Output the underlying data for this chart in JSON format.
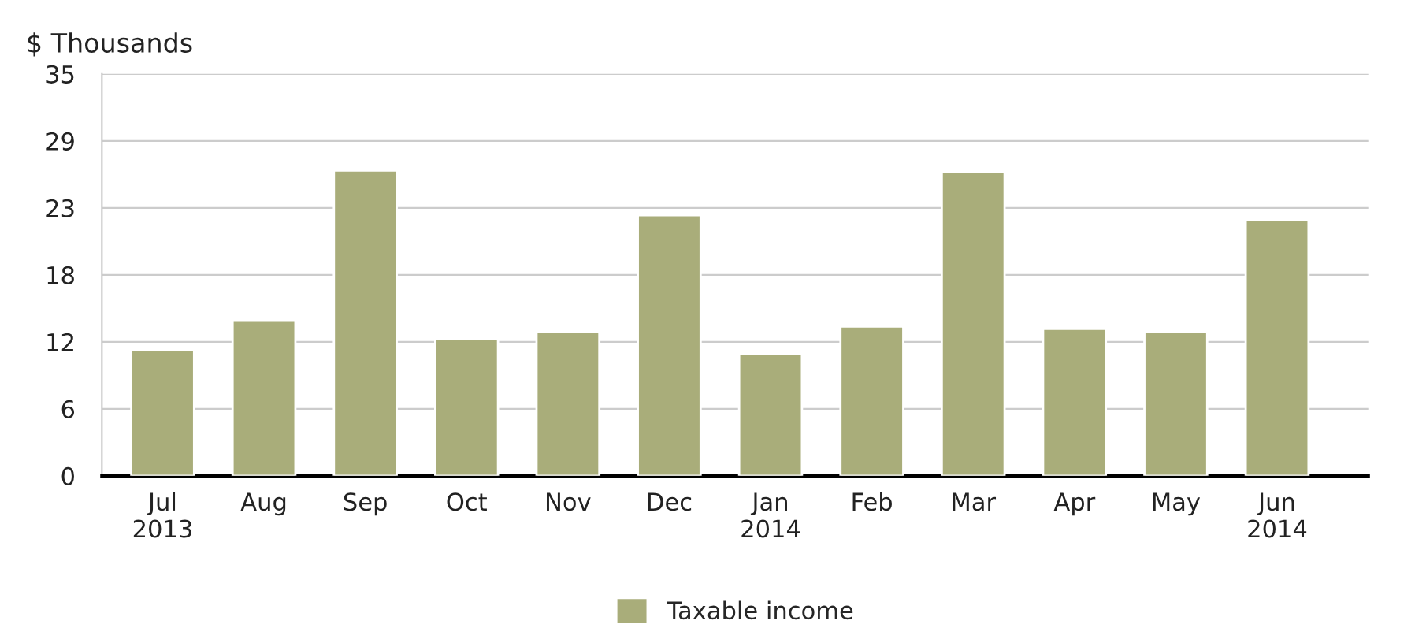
{
  "chart_data": {
    "type": "bar",
    "ylabel": "$ Thousands",
    "categories": [
      "Jul\n2013",
      "Aug",
      "Sep",
      "Oct",
      "Nov",
      "Dec",
      "Jan\n2014",
      "Feb",
      "Mar",
      "Apr",
      "May",
      "Jun\n2014"
    ],
    "series": [
      {
        "name": "Taxable income",
        "color": "#a9ad7a",
        "values": [
          11.0,
          13.5,
          26.6,
          11.9,
          12.5,
          22.7,
          10.6,
          13.0,
          26.5,
          12.8,
          12.5,
          22.3
        ]
      }
    ],
    "ylim": [
      0,
      35
    ],
    "yticks": [
      0,
      {
        "value": 5.833,
        "label": "6"
      },
      {
        "value": 11.667,
        "label": "12"
      },
      {
        "value": 17.5,
        "label": "18"
      },
      {
        "value": 23.333,
        "label": "23"
      },
      {
        "value": 29.167,
        "label": "29"
      },
      35
    ],
    "grid": "y",
    "legend": "bottom"
  }
}
